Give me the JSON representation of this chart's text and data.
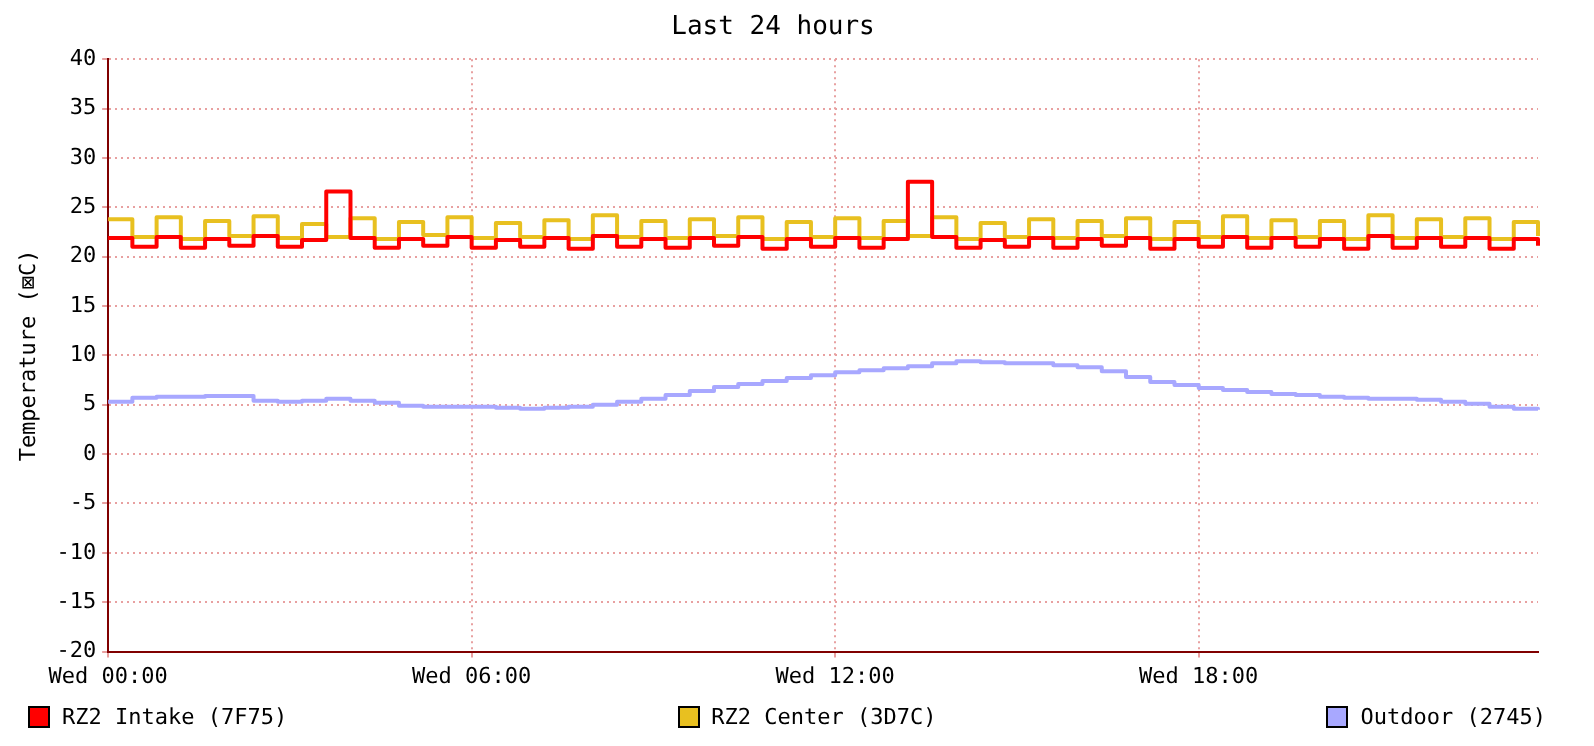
{
  "chart_data": {
    "type": "step",
    "title": "Last 24 hours",
    "ylabel": "Temperature (⊠C)",
    "categories": [
      "Wed 00:00",
      null,
      null,
      null,
      null,
      null,
      null,
      null,
      null,
      null,
      null,
      null,
      null,
      null,
      null,
      "Wed 06:00",
      null,
      null,
      null,
      null,
      null,
      null,
      null,
      null,
      null,
      null,
      null,
      null,
      null,
      null,
      "Wed 12:00",
      null,
      null,
      null,
      null,
      null,
      null,
      null,
      null,
      null,
      null,
      null,
      null,
      null,
      null,
      "Wed 18:00",
      null,
      null,
      null,
      null,
      null,
      null,
      null,
      null,
      null,
      null,
      null,
      null,
      null,
      null
    ],
    "series": [
      {
        "name": "RZ2 Intake (7F75)",
        "color": "#ff0000",
        "values": [
          21.9,
          21.0,
          22.0,
          20.9,
          21.8,
          21.1,
          22.1,
          21.0,
          21.7,
          26.6,
          21.9,
          20.9,
          21.8,
          21.1,
          22.0,
          20.9,
          21.7,
          21.0,
          21.9,
          20.8,
          22.1,
          21.0,
          21.8,
          20.9,
          21.9,
          21.1,
          22.0,
          20.8,
          21.8,
          21.0,
          21.9,
          20.9,
          21.8,
          27.6,
          22.0,
          20.9,
          21.7,
          21.0,
          21.9,
          20.9,
          21.8,
          21.1,
          21.9,
          20.8,
          21.8,
          21.0,
          22.0,
          20.9,
          21.9,
          21.0,
          21.8,
          20.8,
          22.1,
          20.9,
          21.9,
          21.0,
          21.9,
          20.8,
          21.8,
          21.1
        ]
      },
      {
        "name": "RZ2 Center (3D7C)",
        "color": "#e8c020",
        "values": [
          23.8,
          22.0,
          24.0,
          21.8,
          23.6,
          22.1,
          24.1,
          21.9,
          23.3,
          22.0,
          23.9,
          21.8,
          23.5,
          22.2,
          24.0,
          21.9,
          23.4,
          22.0,
          23.7,
          21.8,
          24.2,
          22.0,
          23.6,
          21.9,
          23.8,
          22.1,
          24.0,
          21.8,
          23.5,
          22.0,
          23.9,
          21.9,
          23.6,
          22.1,
          24.0,
          21.8,
          23.4,
          22.0,
          23.8,
          21.9,
          23.6,
          22.1,
          23.9,
          21.8,
          23.5,
          22.0,
          24.1,
          21.9,
          23.7,
          22.0,
          23.6,
          21.8,
          24.2,
          21.9,
          23.8,
          22.0,
          23.9,
          21.8,
          23.5,
          22.1
        ]
      },
      {
        "name": "Outdoor (2745)",
        "color": "#a8a8ff",
        "values": [
          5.3,
          5.7,
          5.8,
          5.8,
          5.9,
          5.9,
          5.4,
          5.3,
          5.4,
          5.6,
          5.4,
          5.2,
          4.9,
          4.8,
          4.8,
          4.8,
          4.7,
          4.6,
          4.7,
          4.8,
          5.0,
          5.3,
          5.6,
          6.0,
          6.4,
          6.8,
          7.1,
          7.4,
          7.7,
          8.0,
          8.3,
          8.5,
          8.7,
          8.9,
          9.2,
          9.4,
          9.3,
          9.2,
          9.2,
          9.0,
          8.8,
          8.4,
          7.8,
          7.3,
          7.0,
          6.7,
          6.5,
          6.3,
          6.1,
          6.0,
          5.8,
          5.7,
          5.6,
          5.6,
          5.5,
          5.3,
          5.1,
          4.8,
          4.6,
          4.5
        ]
      }
    ],
    "ylim": [
      -20,
      40
    ],
    "yticks": [
      -20,
      -15,
      -10,
      -5,
      0,
      5,
      10,
      15,
      20,
      25,
      30,
      35,
      40
    ],
    "grid": true,
    "legend": "bottom",
    "line_style": "solid",
    "marker": "none"
  }
}
